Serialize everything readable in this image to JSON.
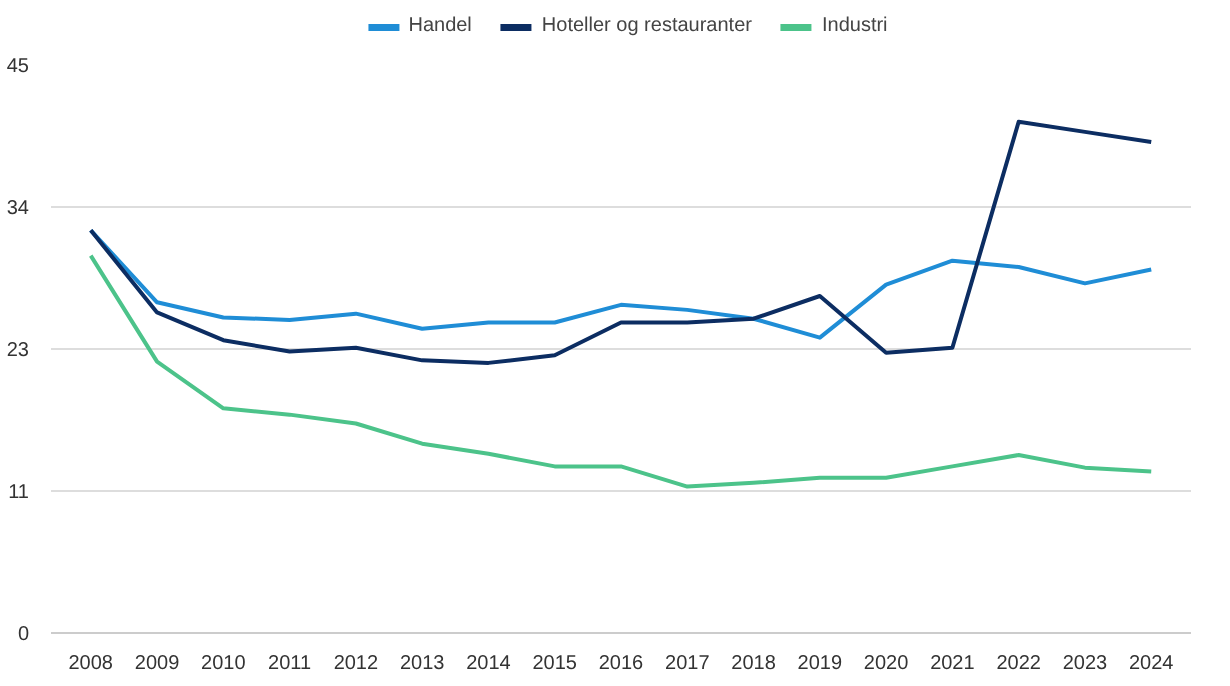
{
  "chart_data": {
    "type": "line",
    "categories": [
      "2008",
      "2009",
      "2010",
      "2011",
      "2012",
      "2013",
      "2014",
      "2015",
      "2016",
      "2017",
      "2018",
      "2019",
      "2020",
      "2021",
      "2022",
      "2023",
      "2024"
    ],
    "series": [
      {
        "name": "Handel",
        "color": "#1f8dd6",
        "values": [
          31.9,
          26.2,
          25.0,
          24.8,
          25.3,
          24.1,
          24.6,
          24.6,
          26.0,
          25.6,
          24.9,
          23.4,
          27.6,
          29.5,
          29.0,
          27.7,
          28.8
        ]
      },
      {
        "name": "Hoteller og restauranter",
        "color": "#0c2d62",
        "values": [
          31.9,
          25.4,
          23.2,
          22.3,
          22.6,
          21.6,
          21.4,
          22.0,
          24.6,
          24.6,
          24.9,
          26.7,
          22.2,
          22.6,
          40.5,
          39.7,
          38.9
        ]
      },
      {
        "name": "Industri",
        "color": "#4cc38a",
        "values": [
          29.9,
          21.5,
          17.8,
          17.3,
          16.6,
          15.0,
          14.2,
          13.2,
          13.2,
          11.6,
          11.9,
          12.3,
          12.3,
          13.2,
          14.1,
          13.1,
          12.8
        ]
      }
    ],
    "ylim": [
      0,
      45
    ],
    "yticks": [
      0,
      {
        "value": 11.25,
        "label": "11"
      },
      {
        "value": 22.5,
        "label": "23"
      },
      {
        "value": 33.75,
        "label": "34"
      },
      45
    ],
    "grid": "y",
    "legend": "top",
    "line_style": "solid"
  }
}
